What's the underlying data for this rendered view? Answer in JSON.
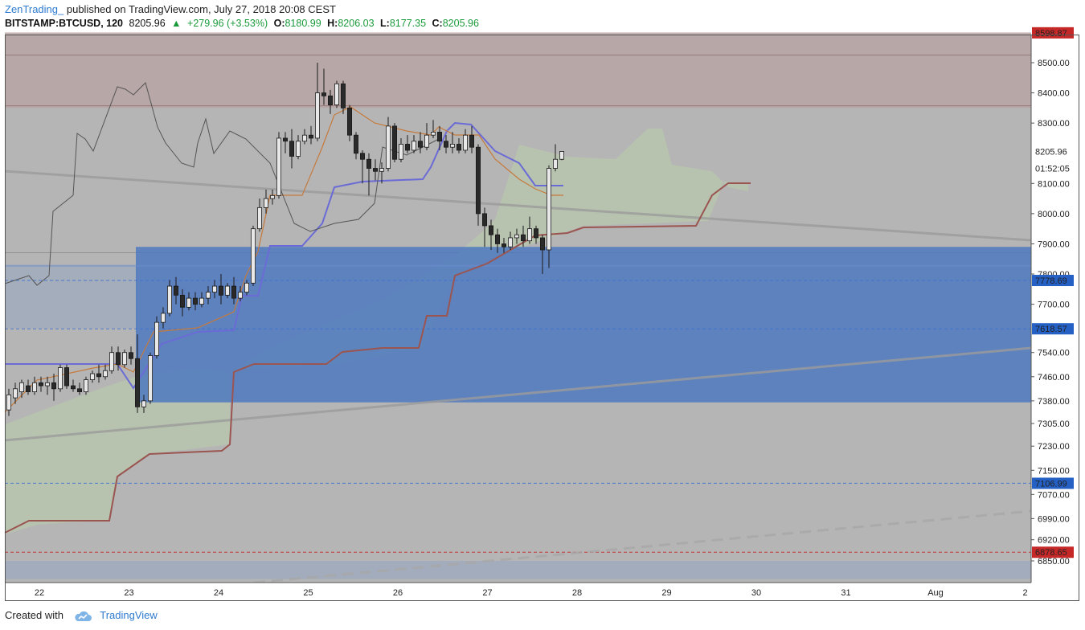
{
  "header": {
    "author": "ZenTrading_",
    "published": "published on TradingView.com, July 27, 2018 20:08 CEST",
    "symbol": "BITSTAMP:BTCUSD, 120",
    "last": "8205.96",
    "change": "+279.96 (+3.53%)",
    "open_label": "O:",
    "open": "8180.99",
    "high_label": "H:",
    "high": "8206.03",
    "low_label": "L:",
    "low": "8177.35",
    "close_label": "C:",
    "close": "8205.96"
  },
  "footer": {
    "created_with": "Created with",
    "brand": "TradingView"
  },
  "colors": {
    "chart_bg": "#b5b5b5",
    "blue_zone": "#4a76c0",
    "resistance_zone": "#b9a5a5",
    "cloud": "#b8c7ae",
    "tenkan": "#6b6bd6",
    "kijun": "#c67a3c",
    "senkou_b": "#9b5550",
    "chikou": "#555555",
    "badge_blue": "#2560c4",
    "badge_red": "#c62828"
  },
  "chart_data": {
    "type": "candlestick",
    "price_axis": {
      "ticks": [
        8500,
        8400,
        8300,
        8100,
        8000,
        7900,
        7800,
        7700,
        7540,
        7460,
        7380,
        7305,
        7230,
        7150,
        7070,
        6990,
        6920,
        6850
      ],
      "tick_labels": [
        "8500.00",
        "8400.00",
        "8300.00",
        "8100.00",
        "8000.00",
        "7900.00",
        "7800.00",
        "7700.00",
        "7540.00",
        "7460.00",
        "7380.00",
        "7305.00",
        "7230.00",
        "7150.00",
        "7070.00",
        "6990.00",
        "6920.00",
        "6850.00"
      ],
      "badges": [
        {
          "label": "8598.87",
          "value": 8598.87,
          "color": "red"
        },
        {
          "label": "8205.96",
          "value": 8205.96,
          "color": "white"
        },
        {
          "label": "01:52:05",
          "value": 8150,
          "color": "white"
        },
        {
          "label": "7778.69",
          "value": 7778.69,
          "color": "blue"
        },
        {
          "label": "7618.57",
          "value": 7618.57,
          "color": "blue"
        },
        {
          "label": "7106.99",
          "value": 7106.99,
          "color": "blue"
        },
        {
          "label": "6878.65",
          "value": 6878.65,
          "color": "red"
        }
      ]
    },
    "time_axis": {
      "labels": [
        "22",
        "23",
        "24",
        "25",
        "26",
        "27",
        "28",
        "29",
        "30",
        "31",
        "Aug",
        "2"
      ]
    },
    "zones": {
      "resistance": [
        8350,
        8600
      ],
      "demand": [
        7375,
        7890
      ],
      "left_band": [
        7620,
        7830
      ],
      "bottom_band": [
        6790,
        6850
      ]
    },
    "candles": [
      [
        7350,
        7400,
        7330,
        7420
      ],
      [
        7390,
        7420,
        7370,
        7440
      ],
      [
        7410,
        7440,
        7390,
        7450
      ],
      [
        7430,
        7410,
        7400,
        7450
      ],
      [
        7410,
        7440,
        7400,
        7460
      ],
      [
        7440,
        7430,
        7410,
        7460
      ],
      [
        7430,
        7440,
        7400,
        7460
      ],
      [
        7440,
        7420,
        7380,
        7470
      ],
      [
        7420,
        7490,
        7410,
        7500
      ],
      [
        7490,
        7430,
        7420,
        7500
      ],
      [
        7430,
        7420,
        7410,
        7450
      ],
      [
        7420,
        7410,
        7400,
        7440
      ],
      [
        7410,
        7450,
        7400,
        7460
      ],
      [
        7450,
        7470,
        7440,
        7480
      ],
      [
        7470,
        7460,
        7440,
        7500
      ],
      [
        7460,
        7480,
        7450,
        7500
      ],
      [
        7480,
        7540,
        7470,
        7560
      ],
      [
        7540,
        7500,
        7480,
        7560
      ],
      [
        7500,
        7540,
        7490,
        7550
      ],
      [
        7540,
        7520,
        7500,
        7560
      ],
      [
        7520,
        7360,
        7340,
        7600
      ],
      [
        7360,
        7380,
        7340,
        7400
      ],
      [
        7380,
        7530,
        7370,
        7540
      ],
      [
        7530,
        7640,
        7520,
        7660
      ],
      [
        7640,
        7670,
        7620,
        7690
      ],
      [
        7670,
        7760,
        7660,
        7780
      ],
      [
        7760,
        7730,
        7700,
        7790
      ],
      [
        7730,
        7690,
        7660,
        7750
      ],
      [
        7690,
        7720,
        7680,
        7740
      ],
      [
        7720,
        7700,
        7680,
        7740
      ],
      [
        7700,
        7720,
        7690,
        7740
      ],
      [
        7720,
        7740,
        7700,
        7760
      ],
      [
        7740,
        7760,
        7720,
        7780
      ],
      [
        7760,
        7730,
        7700,
        7800
      ],
      [
        7730,
        7760,
        7720,
        7770
      ],
      [
        7760,
        7720,
        7700,
        7790
      ],
      [
        7720,
        7740,
        7710,
        7760
      ],
      [
        7740,
        7770,
        7730,
        7780
      ],
      [
        7770,
        7950,
        7760,
        7960
      ],
      [
        7950,
        8020,
        7940,
        8050
      ],
      [
        8020,
        8050,
        8000,
        8080
      ],
      [
        8050,
        8060,
        8030,
        8080
      ],
      [
        8060,
        8250,
        8050,
        8270
      ],
      [
        8250,
        8240,
        8200,
        8270
      ],
      [
        8240,
        8190,
        8150,
        8280
      ],
      [
        8190,
        8240,
        8180,
        8260
      ],
      [
        8240,
        8260,
        8230,
        8280
      ],
      [
        8260,
        8250,
        8230,
        8290
      ],
      [
        8250,
        8400,
        8240,
        8500
      ],
      [
        8400,
        8390,
        8360,
        8480
      ],
      [
        8390,
        8360,
        8330,
        8410
      ],
      [
        8360,
        8430,
        8350,
        8440
      ],
      [
        8430,
        8350,
        8330,
        8440
      ],
      [
        8350,
        8260,
        8240,
        8360
      ],
      [
        8260,
        8200,
        8180,
        8270
      ],
      [
        8200,
        8180,
        8100,
        8210
      ],
      [
        8180,
        8150,
        8060,
        8200
      ],
      [
        8150,
        8140,
        8110,
        8180
      ],
      [
        8140,
        8150,
        8100,
        8170
      ],
      [
        8150,
        8290,
        8140,
        8320
      ],
      [
        8290,
        8180,
        8170,
        8300
      ],
      [
        8180,
        8230,
        8170,
        8250
      ],
      [
        8230,
        8210,
        8200,
        8260
      ],
      [
        8210,
        8240,
        8200,
        8260
      ],
      [
        8240,
        8220,
        8200,
        8270
      ],
      [
        8220,
        8260,
        8210,
        8300
      ],
      [
        8260,
        8270,
        8250,
        8310
      ],
      [
        8270,
        8240,
        8210,
        8290
      ],
      [
        8240,
        8220,
        8200,
        8260
      ],
      [
        8220,
        8230,
        8200,
        8270
      ],
      [
        8230,
        8210,
        8200,
        8250
      ],
      [
        8210,
        8260,
        8200,
        8280
      ],
      [
        8260,
        8220,
        8200,
        8290
      ],
      [
        8220,
        8000,
        7960,
        8230
      ],
      [
        8000,
        7960,
        7890,
        8020
      ],
      [
        7960,
        7930,
        7880,
        7980
      ],
      [
        7930,
        7900,
        7870,
        7950
      ],
      [
        7900,
        7890,
        7870,
        7920
      ],
      [
        7890,
        7920,
        7880,
        7940
      ],
      [
        7920,
        7930,
        7900,
        7950
      ],
      [
        7930,
        7910,
        7890,
        7960
      ],
      [
        7910,
        7950,
        7900,
        7990
      ],
      [
        7950,
        7920,
        7900,
        7960
      ],
      [
        7920,
        7880,
        7800,
        7930
      ],
      [
        7880,
        8150,
        7820,
        8160
      ],
      [
        8150,
        8180,
        8140,
        8230
      ],
      [
        8180,
        8206,
        8177,
        8206
      ]
    ]
  }
}
